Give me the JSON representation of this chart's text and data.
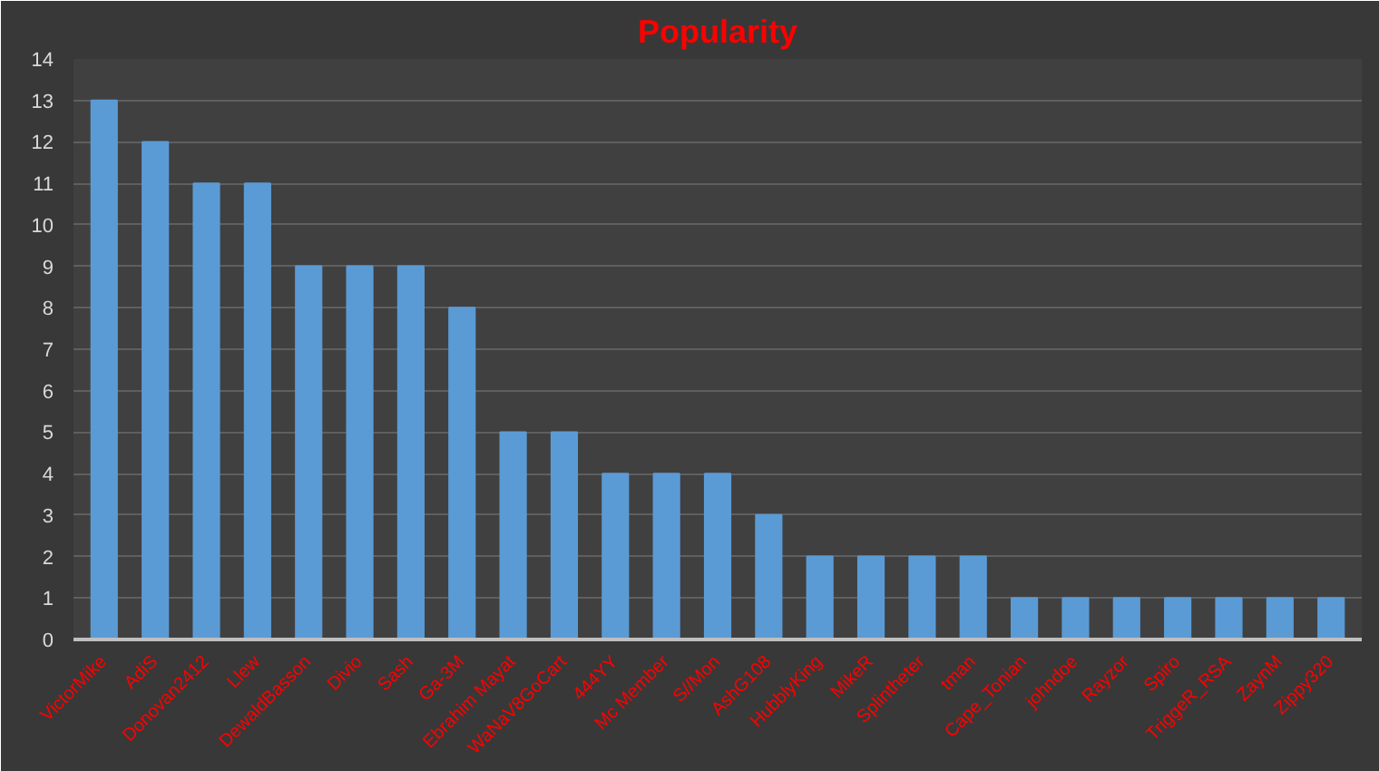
{
  "chart_data": {
    "type": "bar",
    "title": "Popularity",
    "categories": [
      "VictorMike",
      "AdiS",
      "Donovan2412",
      "Llew",
      "DewaldBasson",
      "Divio",
      "Sash",
      "Ga-3M",
      "Ebrahim Mayat",
      "WaNaV8GoCart",
      "444YY",
      "Mc Member",
      "S//Mon",
      "AshG108",
      "HubblyKing",
      "MikeR",
      "Splintheter",
      "tman",
      "Cape_Tonian",
      "johndoe",
      "Rayzor",
      "Spiro",
      "TriggeR_RSA",
      "ZaynM",
      "Zippy320"
    ],
    "values": [
      13,
      12,
      11,
      11,
      9,
      9,
      9,
      8,
      5,
      5,
      4,
      4,
      4,
      3,
      2,
      2,
      2,
      2,
      1,
      1,
      1,
      1,
      1,
      1,
      1
    ],
    "color": "#5b9bd5",
    "ylim": [
      0,
      14
    ],
    "yticks": [
      0,
      1,
      2,
      3,
      4,
      5,
      6,
      7,
      8,
      9,
      10,
      11,
      12,
      13,
      14
    ],
    "grid": "y"
  }
}
